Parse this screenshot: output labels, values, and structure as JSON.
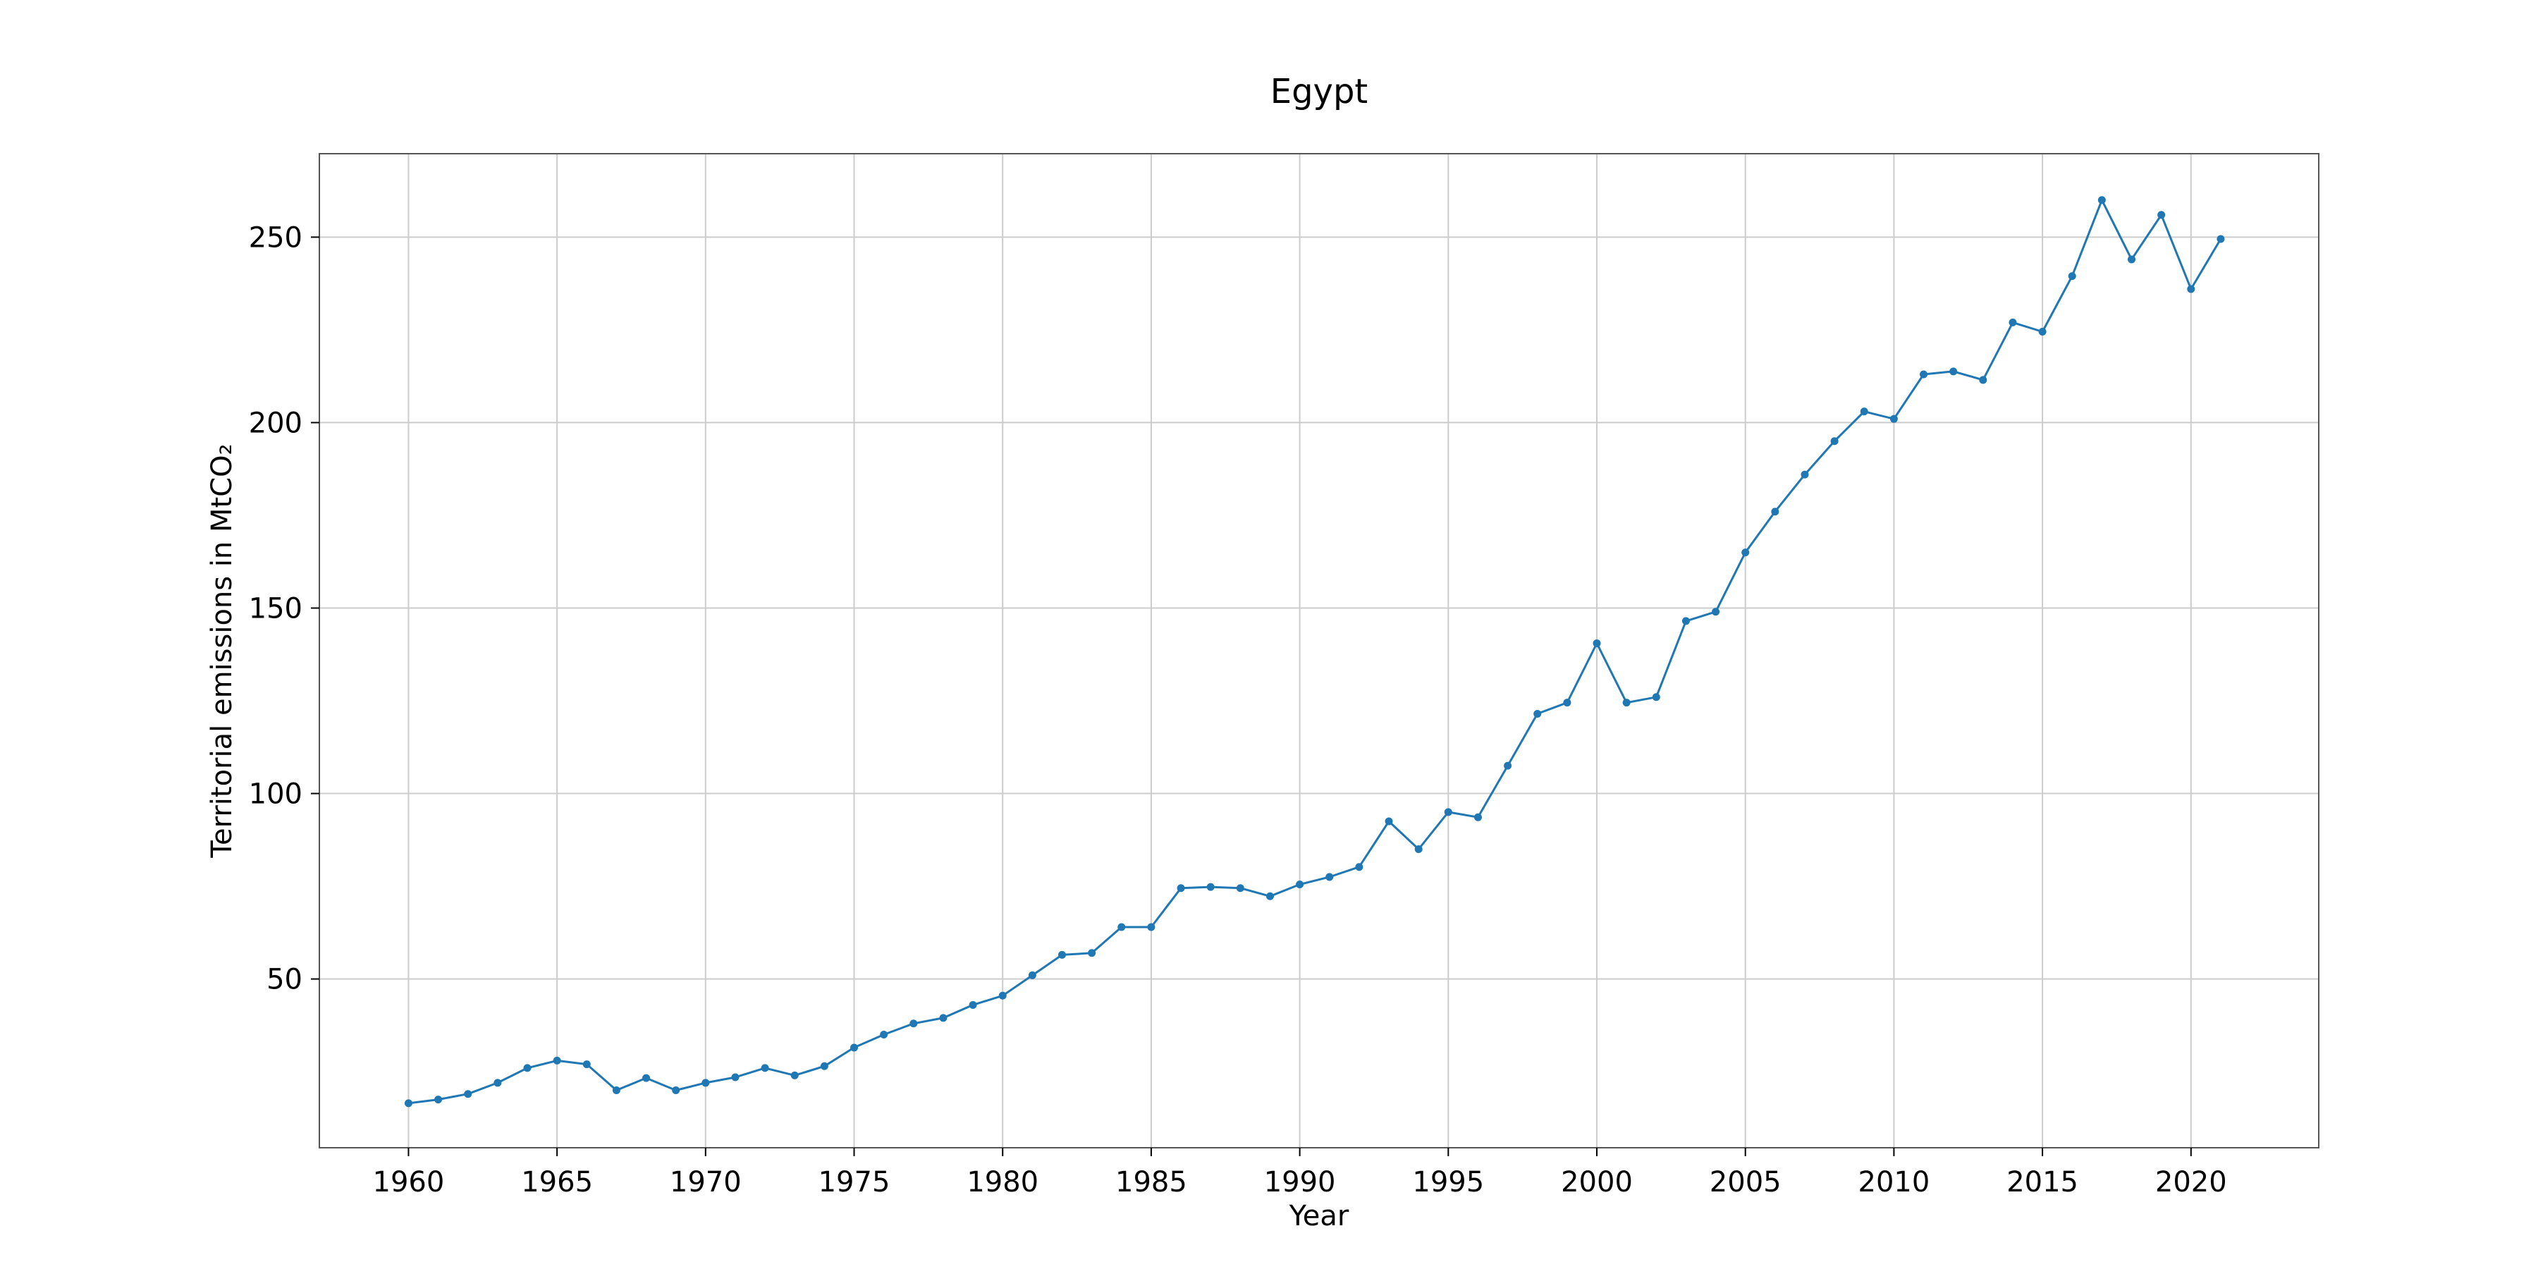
{
  "chart_data": {
    "type": "line",
    "title": "Egypt",
    "xlabel": "Year",
    "ylabel": "Territorial emissions in MtCO₂",
    "xlim": [
      1957,
      2024.3
    ],
    "ylim": [
      4.5,
      272.5
    ],
    "xticks": [
      1960,
      1965,
      1970,
      1975,
      1980,
      1985,
      1990,
      1995,
      2000,
      2005,
      2010,
      2015,
      2020
    ],
    "yticks": [
      50,
      100,
      150,
      200,
      250
    ],
    "grid": true,
    "colors": {
      "line": "#1f77b4",
      "grid": "#cccccc",
      "frame": "#555555"
    },
    "series": [
      {
        "x": [
          1960,
          1961,
          1962,
          1963,
          1964,
          1965,
          1966,
          1967,
          1968,
          1969,
          1970,
          1971,
          1972,
          1973,
          1974,
          1975,
          1976,
          1977,
          1978,
          1979,
          1980,
          1981,
          1982,
          1983,
          1984,
          1985,
          1986,
          1987,
          1988,
          1989,
          1990,
          1991,
          1992,
          1993,
          1994,
          1995,
          1996,
          1997,
          1998,
          1999,
          2000,
          2001,
          2002,
          2003,
          2004,
          2005,
          2006,
          2007,
          2008,
          2009,
          2010,
          2011,
          2012,
          2013,
          2014,
          2015,
          2016,
          2017,
          2018,
          2019,
          2020,
          2021
        ],
        "values": [
          16.5,
          17.5,
          19,
          22,
          26,
          28,
          27,
          20,
          23.3,
          20,
          22,
          23.5,
          26,
          24,
          26.5,
          31.5,
          35,
          38,
          39.5,
          43,
          45.5,
          51,
          56.5,
          57,
          64,
          64,
          74.5,
          74.8,
          74.5,
          72.3,
          75.5,
          77.5,
          80.2,
          92.5,
          85,
          95,
          93.6,
          107.5,
          121.5,
          124.5,
          140.5,
          124.5,
          126,
          146.5,
          149,
          165,
          176,
          186,
          195,
          203,
          201,
          213,
          213.8,
          211.5,
          227,
          224.5,
          239.5,
          260,
          244,
          256,
          236,
          249.5
        ]
      }
    ]
  }
}
